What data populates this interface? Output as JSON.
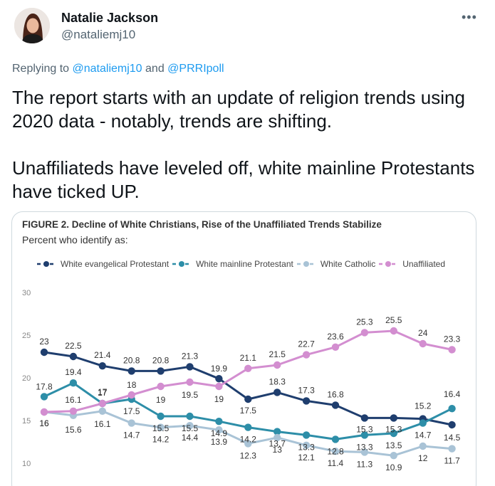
{
  "tweet": {
    "author_name": "Natalie Jackson",
    "author_handle": "@nataliemj10",
    "more_label": "•••",
    "reply_prefix": "Replying to ",
    "reply_mention_1": "@nataliemj10",
    "reply_and": " and ",
    "reply_mention_2": "@PRRIpoll",
    "paragraph_1": "The report starts with an update of religion trends using 2020 data - notably, trends are shifting.",
    "paragraph_2": "Unaffiliateds have leveled off, white mainline Protestants have ticked UP."
  },
  "chart_data": {
    "type": "line",
    "title": "FIGURE 2.  Decline of White Christians, Rise of the Unaffiliated Trends Stabilize",
    "subtitle": "Percent who identify as:",
    "xlabel": "",
    "ylabel": "",
    "ylim": [
      10,
      30
    ],
    "yticks": [
      10,
      15,
      20,
      25,
      30
    ],
    "x": [
      0,
      1,
      2,
      3,
      4,
      5,
      6,
      7,
      8,
      9,
      10,
      11,
      12,
      13,
      14
    ],
    "series": [
      {
        "name": "White evangelical Protestant",
        "color": "#1f3e6e",
        "values": [
          23,
          22.5,
          21.4,
          20.8,
          20.8,
          21.3,
          19.9,
          17.5,
          18.3,
          17.3,
          16.8,
          15.3,
          15.3,
          15.2,
          14.5
        ]
      },
      {
        "name": "White mainline Protestant",
        "color": "#2d8ea8",
        "values": [
          17.8,
          19.4,
          17,
          17.5,
          15.5,
          15.5,
          14.9,
          14.2,
          13.7,
          13.3,
          12.8,
          13.3,
          13.5,
          14.7,
          16.4
        ]
      },
      {
        "name": "White Catholic",
        "color": "#a9c3d6",
        "values": [
          16,
          15.6,
          16.1,
          14.7,
          14.2,
          14.4,
          13.9,
          12.3,
          13,
          12.1,
          11.4,
          11.3,
          10.9,
          12,
          11.7
        ]
      },
      {
        "name": "Unaffiliated",
        "color": "#d38ed0",
        "values": [
          16,
          16.1,
          17,
          18,
          19,
          19.5,
          19,
          21.1,
          21.5,
          22.7,
          23.6,
          25.3,
          25.5,
          24,
          23.3
        ]
      }
    ]
  }
}
